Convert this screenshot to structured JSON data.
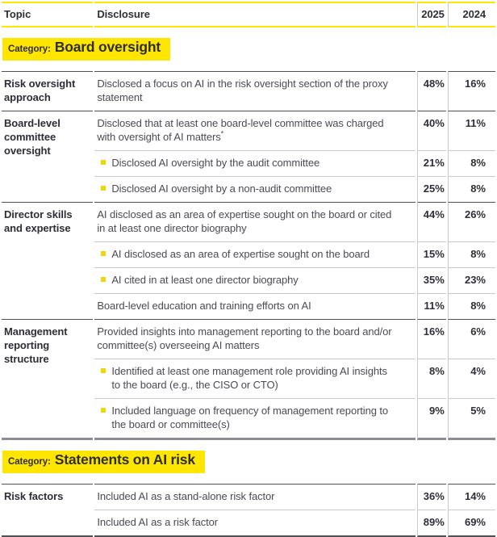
{
  "theme": {
    "yellow": "#ffe600",
    "bullet": "#f2d600",
    "text_dark": "#2e2e38",
    "text_body": "#4a4a55",
    "light_rule": "#c9c9d1",
    "dark_rule": "#50505b",
    "thick_rule": "#8c8c95"
  },
  "table": {
    "header": {
      "topic": "Topic",
      "disclosure": "Disclosure",
      "y2025": "2025",
      "y2024": "2024"
    },
    "sections": [
      {
        "category_label": "Category:",
        "category_name": "Board oversight",
        "groups": [
          {
            "topic": "Risk oversight approach",
            "rows": [
              {
                "text": "Disclosed a focus on AI in the risk oversight section of the proxy statement",
                "bullet": false,
                "v2025": "48%",
                "v2024": "16%"
              }
            ]
          },
          {
            "topic": "Board-level committee oversight",
            "rows": [
              {
                "text": "Disclosed that at least one board-level committee was charged with oversight of AI matters",
                "sup": "*",
                "bullet": false,
                "v2025": "40%",
                "v2024": "11%"
              },
              {
                "text": "Disclosed AI oversight by the audit committee",
                "bullet": true,
                "v2025": "21%",
                "v2024": "8%"
              },
              {
                "text": "Disclosed AI oversight by a non-audit committee",
                "bullet": true,
                "v2025": "25%",
                "v2024": "8%"
              }
            ]
          },
          {
            "topic": "Director skills and expertise",
            "rows": [
              {
                "text": "AI disclosed as an area of expertise sought on the board or cited in at least one director biography",
                "bullet": false,
                "v2025": "44%",
                "v2024": "26%"
              },
              {
                "text": "AI disclosed as an area of expertise sought on the board",
                "bullet": true,
                "v2025": "15%",
                "v2024": "8%"
              },
              {
                "text": "AI cited in at least one director biography",
                "bullet": true,
                "v2025": "35%",
                "v2024": "23%"
              },
              {
                "text": "Board-level education and training efforts on AI",
                "bullet": false,
                "v2025": "11%",
                "v2024": "8%"
              }
            ]
          },
          {
            "topic": "Management reporting structure",
            "rows": [
              {
                "text": "Provided insights into management reporting to the board and/or committee(s) overseeing AI matters",
                "bullet": false,
                "v2025": "16%",
                "v2024": "6%"
              },
              {
                "text": "Identified at least one management role providing AI insights to the board (e.g., the CISO or CTO)",
                "bullet": true,
                "v2025": "8%",
                "v2024": "4%"
              },
              {
                "text": "Included language on frequency of management reporting to the board or committee(s)",
                "bullet": true,
                "v2025": "9%",
                "v2024": "5%"
              }
            ]
          }
        ]
      },
      {
        "category_label": "Category:",
        "category_name": "Statements on AI risk",
        "groups": [
          {
            "topic": "Risk factors",
            "rows": [
              {
                "text": "Included AI as a stand-alone risk factor",
                "bullet": false,
                "v2025": "36%",
                "v2024": "14%"
              },
              {
                "text": "Included AI as a risk factor",
                "bullet": false,
                "v2025": "89%",
                "v2024": "69%"
              }
            ]
          }
        ]
      }
    ]
  }
}
